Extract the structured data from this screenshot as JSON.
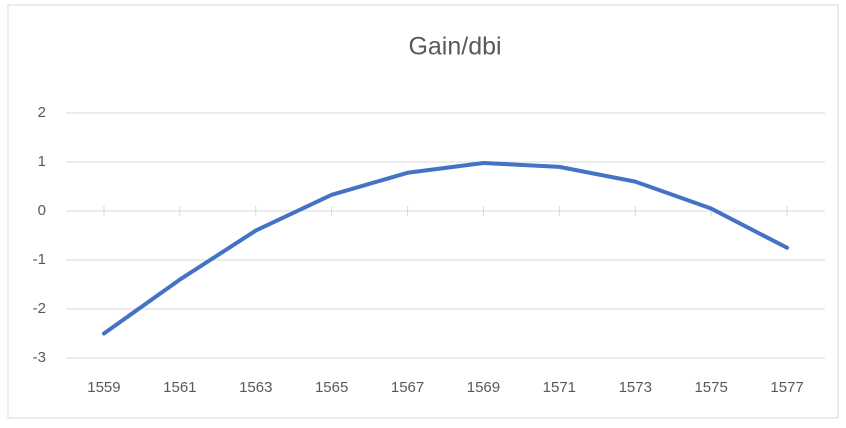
{
  "chart_data": {
    "type": "line",
    "title": "Gain/dbi",
    "categories": [
      "1559",
      "1561",
      "1563",
      "1565",
      "1567",
      "1569",
      "1571",
      "1573",
      "1575",
      "1577"
    ],
    "series": [
      {
        "name": "Gain/dbi",
        "color": "#4472c4",
        "values": [
          -2.5,
          -1.4,
          -0.4,
          0.33,
          0.78,
          0.98,
          0.9,
          0.6,
          0.05,
          -0.75
        ]
      }
    ],
    "ylim": [
      -3,
      2
    ],
    "yticks": [
      -3,
      -2,
      -1,
      0,
      1,
      2
    ],
    "grid": true
  }
}
